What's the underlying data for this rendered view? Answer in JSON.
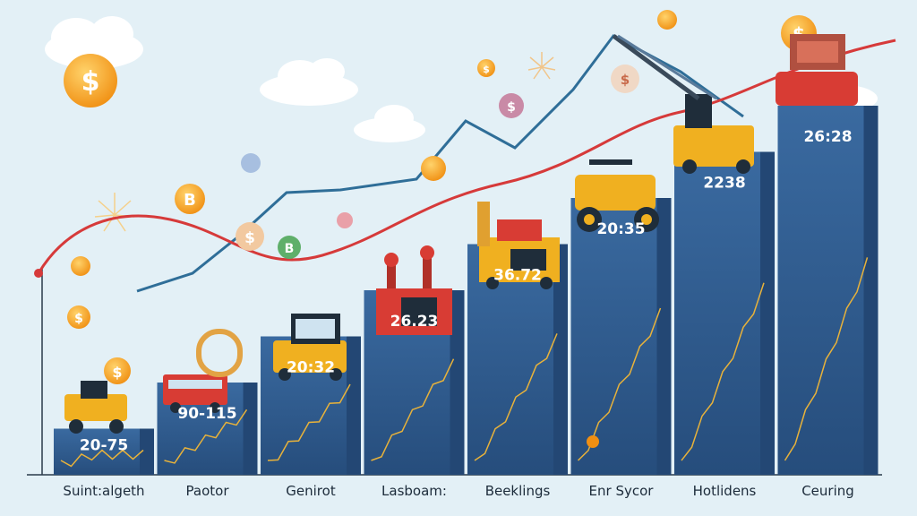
{
  "chart_data": {
    "type": "bar",
    "title": "",
    "xlabel": "",
    "ylabel": "",
    "categories": [
      "Suint:algeth",
      "Paotor",
      "Genirot",
      "Lasboam:",
      "Beeklings",
      "Enr Sycor",
      "Hotlidens",
      "Ceuring"
    ],
    "values": [
      1,
      2,
      3,
      4,
      5,
      6,
      7,
      8
    ],
    "value_labels": [
      "20-75",
      "90-115",
      "20:32",
      "26.23",
      "36.72",
      "20:35",
      "2238",
      "26:28"
    ],
    "ylim": [
      0,
      9
    ],
    "grid": false,
    "legend": "none",
    "overlay_lines": [
      {
        "color": "#d63a3a",
        "trend": "rising wave"
      },
      {
        "color": "#2f6e98",
        "trend": "rising zigzag"
      }
    ]
  },
  "colors": {
    "background": "#e3f0f6",
    "bar": "#2f5a8c",
    "bar_side": "#234774",
    "trend_red": "#d63a3a",
    "trend_blue": "#2f6e98",
    "coin": "#f5a623"
  },
  "icons": [
    "dollar-coin-icon",
    "bitcoin-coin-icon",
    "cloud-icon",
    "vehicle-icon",
    "crane-icon",
    "firework-icon"
  ]
}
